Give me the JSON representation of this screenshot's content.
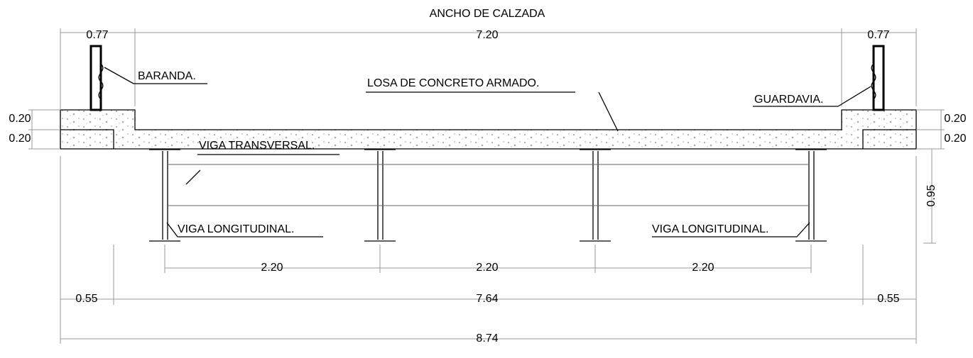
{
  "title": "ANCHO DE CALZADA",
  "dimensions": {
    "top": [
      "0.77",
      "7.20",
      "0.77"
    ],
    "left": [
      "0.20",
      "0.20"
    ],
    "right": [
      "0.20",
      "0.20",
      "0.95"
    ],
    "spacing": [
      "2.20",
      "2.20",
      "2.20"
    ],
    "bottom": [
      "0.55",
      "7.64",
      "0.55"
    ],
    "total": "8.74"
  },
  "labels": {
    "railing": "BARANDA.",
    "slab": "LOSA DE CONCRETO ARMADO.",
    "guardrail": "GUARDAVIA.",
    "cross_beam": "VIGA TRANSVERSAL.",
    "long_beam": [
      "VIGA LONGITUDINAL.",
      "VIGA LONGITUDINAL."
    ]
  }
}
